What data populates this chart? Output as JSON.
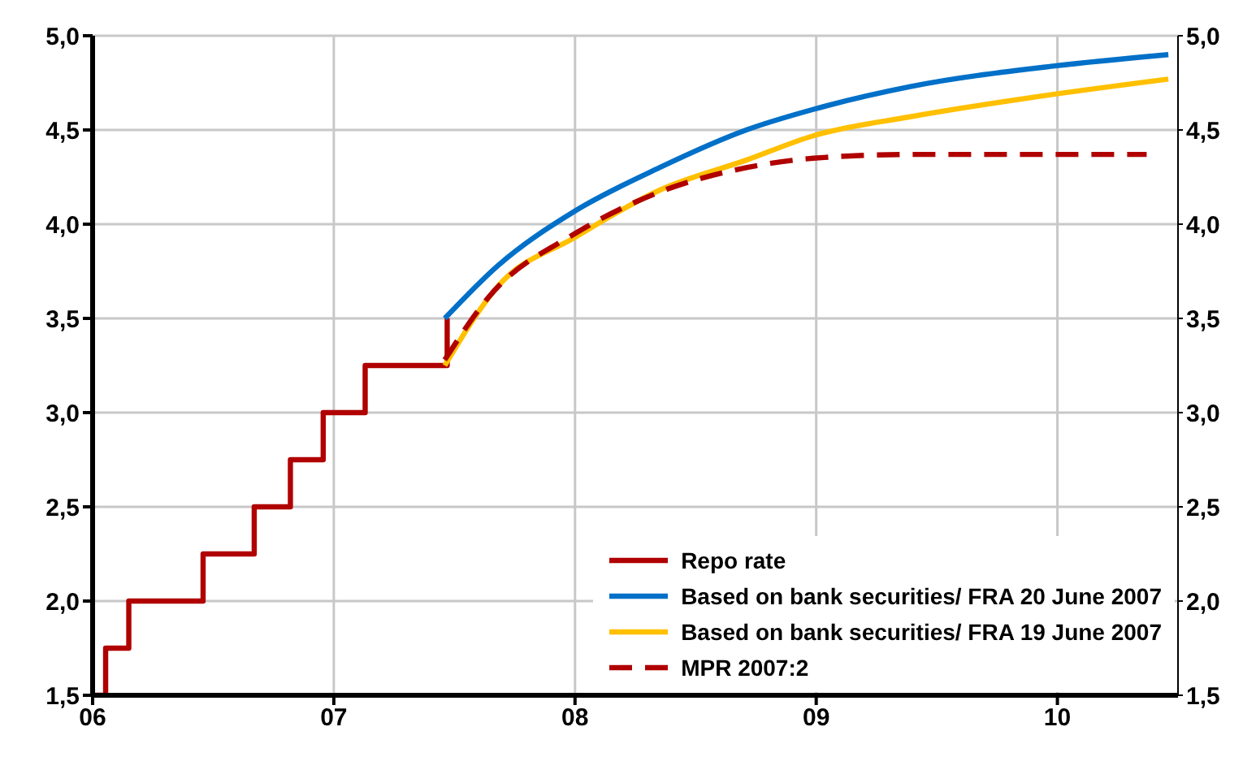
{
  "chart_data": {
    "type": "line",
    "xlim": [
      6,
      10.5
    ],
    "xticks": [
      {
        "value": 6,
        "label": "06"
      },
      {
        "value": 7,
        "label": "07"
      },
      {
        "value": 8,
        "label": "08"
      },
      {
        "value": 9,
        "label": "09"
      },
      {
        "value": 10,
        "label": "10"
      }
    ],
    "ylim": [
      1.5,
      5
    ],
    "yticks": [
      {
        "value": 1.5,
        "label": "1,5"
      },
      {
        "value": 2,
        "label": "2,0"
      },
      {
        "value": 2.5,
        "label": "2,5"
      },
      {
        "value": 3,
        "label": "3,0"
      },
      {
        "value": 3.5,
        "label": "3,5"
      },
      {
        "value": 4,
        "label": "4,0"
      },
      {
        "value": 4.5,
        "label": "4,5"
      },
      {
        "value": 5,
        "label": "5,0"
      }
    ],
    "y2lim": [
      1.5,
      5
    ],
    "y2ticks": [
      {
        "value": 1.5,
        "label": "1,5"
      },
      {
        "value": 2,
        "label": "2,0"
      },
      {
        "value": 2.5,
        "label": "2,5"
      },
      {
        "value": 3,
        "label": "3,0"
      },
      {
        "value": 3.5,
        "label": "3,5"
      },
      {
        "value": 4,
        "label": "4,0"
      },
      {
        "value": 4.5,
        "label": "4,5"
      },
      {
        "value": 5,
        "label": "5,0"
      }
    ],
    "grid": true,
    "legend": "bottom right",
    "marker": "none",
    "series": [
      {
        "name": "Repo rate",
        "type": "step",
        "color": "#b00000",
        "line_style": "solid",
        "x": [
          6,
          6.054,
          6.15,
          6.458,
          6.67,
          6.82,
          6.956,
          7.13,
          7.47
        ],
        "values": [
          1.5,
          1.75,
          2.0,
          2.25,
          2.5,
          2.75,
          3.0,
          3.25,
          3.5
        ]
      },
      {
        "name": "Based on bank securities/ FRA 20 June 2007",
        "color": "#0070c8",
        "line_style": "solid",
        "x": [
          7.46,
          7.68,
          8.0,
          8.35,
          8.71,
          8.99,
          9.39,
          9.99,
          10.46
        ],
        "values": [
          3.5,
          3.78,
          4.07,
          4.3,
          4.5,
          4.61,
          4.73,
          4.84,
          4.9
        ]
      },
      {
        "name": "Based on bank securities/ FRA 19 June 2007",
        "color": "#ffc000",
        "line_style": "solid",
        "x": [
          7.46,
          7.68,
          8.0,
          8.35,
          8.71,
          8.99,
          9.39,
          9.99,
          10.46
        ],
        "values": [
          3.25,
          3.67,
          3.93,
          4.18,
          4.34,
          4.47,
          4.57,
          4.69,
          4.77
        ]
      },
      {
        "name": "MPR 2007:2",
        "color": "#b00000",
        "line_style": "dashed",
        "x": [
          7.46,
          7.64,
          8.0,
          8.35,
          8.71,
          8.99,
          9.39,
          10.37
        ],
        "values": [
          3.28,
          3.61,
          3.95,
          4.17,
          4.3,
          4.35,
          4.37,
          4.37
        ]
      }
    ]
  }
}
